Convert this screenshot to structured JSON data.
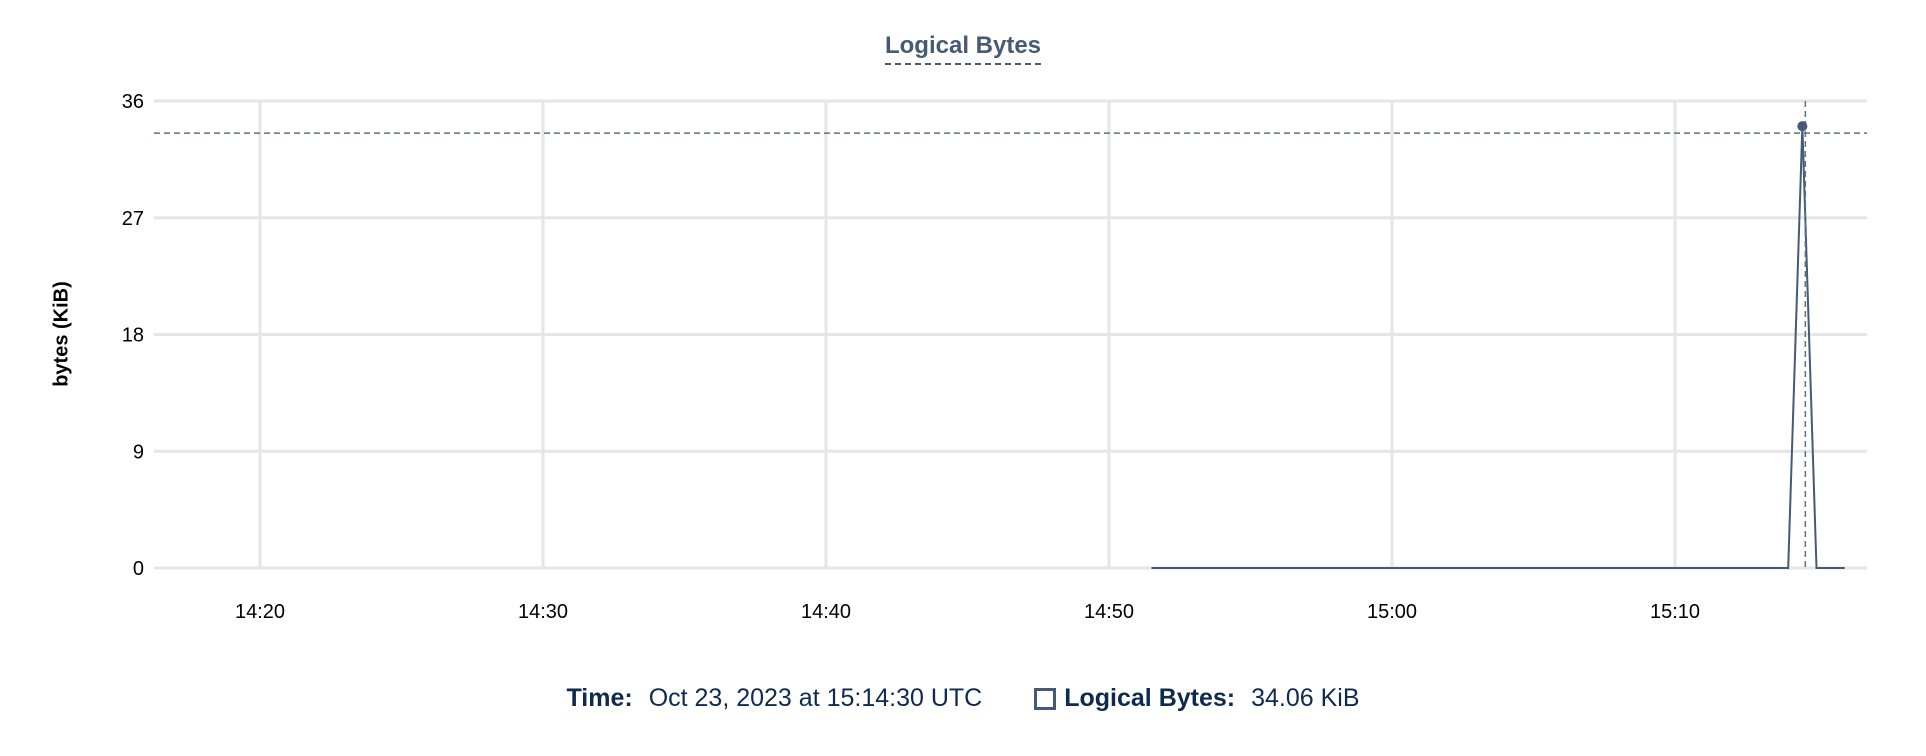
{
  "chart_data": {
    "type": "line",
    "title": "Logical Bytes",
    "ylabel": "bytes (KiB)",
    "xlabel": "",
    "ylim": [
      0,
      36
    ],
    "yticks": [
      "0",
      "9",
      "18",
      "27",
      "36"
    ],
    "xlim": [
      "14:17",
      "15:18"
    ],
    "xticks": [
      "14:20",
      "14:30",
      "14:40",
      "14:50",
      "15:00",
      "15:10"
    ],
    "grid": true,
    "series": [
      {
        "name": "Logical Bytes",
        "color": "#475a75",
        "points": [
          [
            "14:51:30",
            0
          ],
          [
            "15:14:00",
            0
          ],
          [
            "15:14:30",
            34.06
          ],
          [
            "15:15:00",
            0
          ],
          [
            "15:16:00",
            0
          ]
        ]
      }
    ],
    "hover": {
      "time": "15:14:30",
      "value": 34.06
    }
  },
  "legend": {
    "time_label": "Time:",
    "time_value": "Oct 23, 2023 at 15:14:30 UTC",
    "series_label": "Logical Bytes:",
    "series_value": "34.06 KiB"
  }
}
